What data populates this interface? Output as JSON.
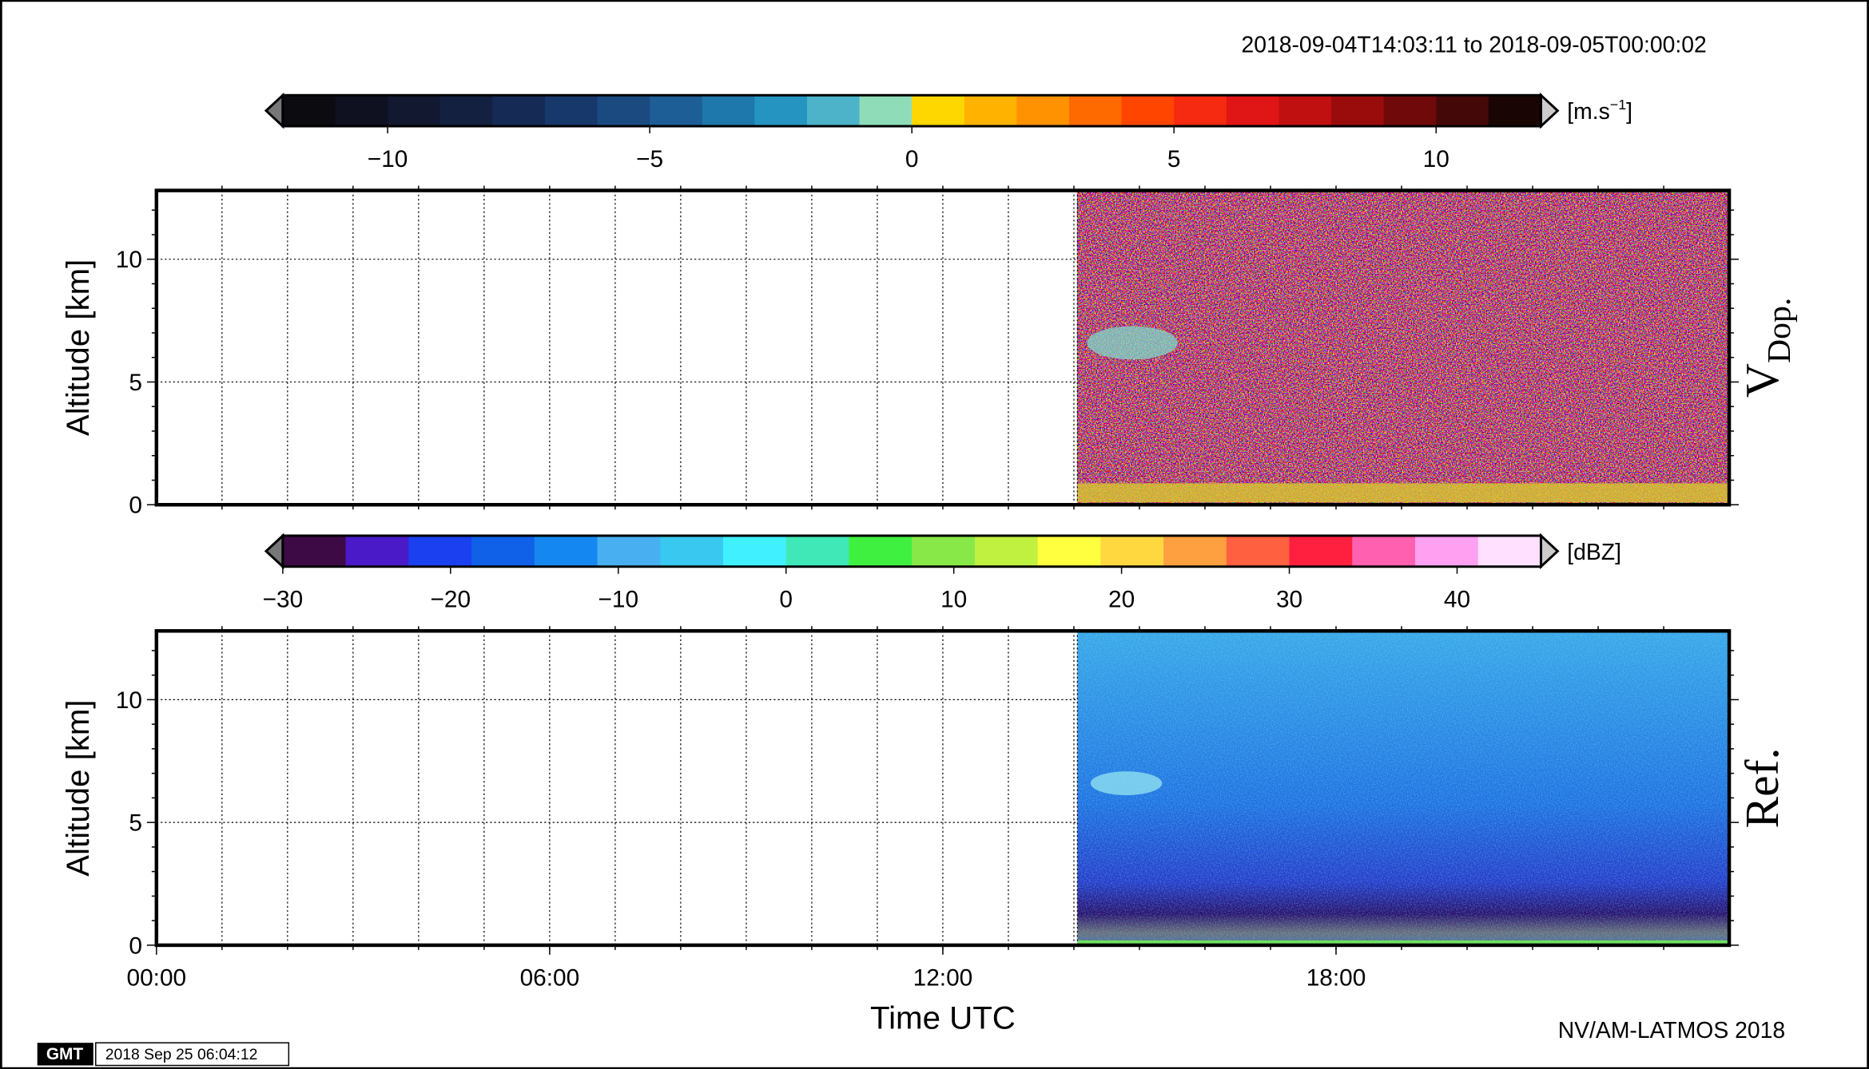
{
  "header": {
    "time_range": "2018-09-04T14:03:11 to 2018-09-05T00:00:02",
    "credit": "NV/AM-LATMOS 2018",
    "logo": "GMT",
    "timestamp": "2018 Sep 25 06:04:12"
  },
  "chart_data": [
    {
      "type": "heatmap",
      "panel_label": "V",
      "panel_label_sub": "Dop.",
      "ylabel": "Altitude [km]",
      "xlim": [
        0,
        24
      ],
      "xminorticks": [
        1,
        2,
        3,
        4,
        5,
        6,
        7,
        8,
        9,
        10,
        11,
        12,
        13,
        14,
        15,
        16,
        17,
        18,
        19,
        20,
        21,
        22,
        23
      ],
      "ylim": [
        0,
        12.8
      ],
      "yticks": [
        0,
        5,
        10
      ],
      "yminorticks": [
        1,
        2,
        3,
        4,
        6,
        7,
        8,
        9,
        11,
        12
      ],
      "data_start": 14.053,
      "colorbar": {
        "unit_base": "[m.s",
        "unit_exp": "−1",
        "unit_end": "]",
        "lim": [
          -12,
          12
        ],
        "ticks": [
          {
            "value": -10,
            "label": "−10"
          },
          {
            "value": -5,
            "label": "−5"
          },
          0,
          5,
          10
        ],
        "colors": [
          "#0b0b10",
          "#0f1020",
          "#121830",
          "#132040",
          "#152a55",
          "#17386b",
          "#1a4a80",
          "#1c5e95",
          "#1f78ab",
          "#2594c0",
          "#4db3c8",
          "#8fdcb8",
          "#ffd700",
          "#ffb300",
          "#ff9200",
          "#ff6a00",
          "#ff4500",
          "#f52a10",
          "#e01515",
          "#c01010",
          "#9a0c0c",
          "#700a0a",
          "#450808",
          "#1a0505"
        ]
      }
    },
    {
      "type": "heatmap",
      "panel_label": "Ref.",
      "ylabel": "Altitude [km]",
      "xlabel": "Time UTC",
      "xlim": [
        0,
        24
      ],
      "xticks": [
        {
          "value": 0,
          "label": "00:00"
        },
        {
          "value": 6,
          "label": "06:00"
        },
        {
          "value": 12,
          "label": "12:00"
        },
        {
          "value": 18,
          "label": "18:00"
        }
      ],
      "xminorticks": [
        1,
        2,
        3,
        4,
        5,
        6,
        7,
        8,
        9,
        10,
        11,
        12,
        13,
        14,
        15,
        16,
        17,
        18,
        19,
        20,
        21,
        22,
        23
      ],
      "ylim": [
        0,
        12.8
      ],
      "yticks": [
        0,
        5,
        10
      ],
      "yminorticks": [
        1,
        2,
        3,
        4,
        6,
        7,
        8,
        9,
        11,
        12
      ],
      "data_start": 14.053,
      "colorbar": {
        "unit": "[dBZ]",
        "lim": [
          -30,
          45
        ],
        "ticks": [
          {
            "value": -30,
            "label": "−30"
          },
          {
            "value": -20,
            "label": "−20"
          },
          {
            "value": -10,
            "label": "−10"
          },
          0,
          10,
          20,
          30,
          40
        ],
        "colors": [
          "#3d0a45",
          "#4a1ac8",
          "#1a40f0",
          "#1060e8",
          "#1488f0",
          "#48b0f0",
          "#38c8f0",
          "#40f0ff",
          "#40e8b8",
          "#40f040",
          "#88e848",
          "#c0f040",
          "#ffff40",
          "#ffd840",
          "#ffa040",
          "#ff6040",
          "#ff2040",
          "#ff60b0",
          "#ffa0f0",
          "#ffe0ff"
        ]
      }
    }
  ]
}
